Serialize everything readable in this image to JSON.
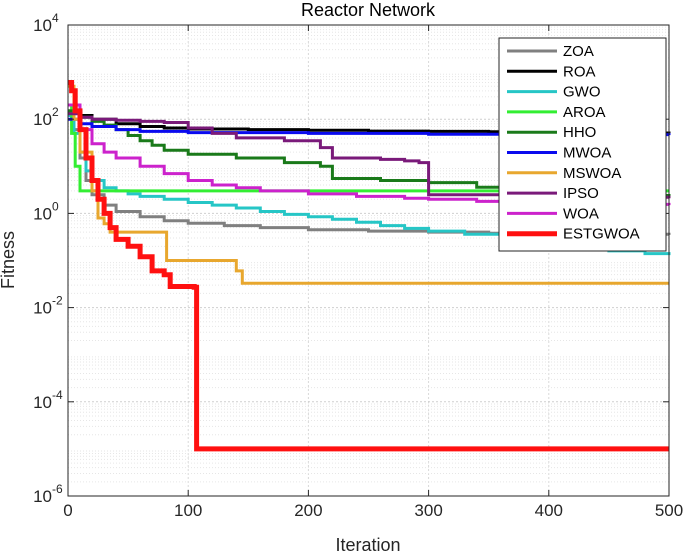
{
  "chart_data": {
    "type": "line",
    "title": "Reactor Network",
    "xlabel": "Iteration",
    "ylabel": "Fitness",
    "xlim": [
      0,
      500
    ],
    "ylim": [
      1e-06,
      10000.0
    ],
    "yscale": "log",
    "grid": true,
    "legend_position": "top-right",
    "x_ticks": [
      {
        "value": 0,
        "label": "0"
      },
      {
        "value": 100,
        "label": "100"
      },
      {
        "value": 200,
        "label": "200"
      },
      {
        "value": 300,
        "label": "300"
      },
      {
        "value": 400,
        "label": "400"
      },
      {
        "value": 500,
        "label": "500"
      }
    ],
    "y_ticks": [
      {
        "value": 1e-06,
        "base": "10",
        "exp": "-6"
      },
      {
        "value": 0.0001,
        "base": "10",
        "exp": "-4"
      },
      {
        "value": 0.01,
        "base": "10",
        "exp": "-2"
      },
      {
        "value": 1,
        "base": "10",
        "exp": "0"
      },
      {
        "value": 100,
        "base": "10",
        "exp": "2"
      },
      {
        "value": 10000,
        "base": "10",
        "exp": "4"
      }
    ],
    "series": [
      {
        "name": "ZOA",
        "color": "#808080",
        "width": 3,
        "points": [
          [
            0,
            200
          ],
          [
            5,
            60
          ],
          [
            10,
            15
          ],
          [
            15,
            5
          ],
          [
            20,
            2.5
          ],
          [
            30,
            1.5
          ],
          [
            40,
            1.1
          ],
          [
            60,
            0.85
          ],
          [
            80,
            0.7
          ],
          [
            100,
            0.62
          ],
          [
            130,
            0.55
          ],
          [
            160,
            0.5
          ],
          [
            200,
            0.45
          ],
          [
            250,
            0.42
          ],
          [
            300,
            0.4
          ],
          [
            350,
            0.38
          ],
          [
            400,
            0.37
          ],
          [
            450,
            0.36
          ],
          [
            500,
            0.35
          ]
        ]
      },
      {
        "name": "ROA",
        "color": "#000000",
        "width": 3,
        "points": [
          [
            0,
            150
          ],
          [
            10,
            120
          ],
          [
            20,
            100
          ],
          [
            40,
            80
          ],
          [
            60,
            70
          ],
          [
            80,
            65
          ],
          [
            100,
            62
          ],
          [
            150,
            60
          ],
          [
            200,
            58
          ],
          [
            250,
            56
          ],
          [
            300,
            55
          ],
          [
            350,
            54
          ],
          [
            400,
            52
          ],
          [
            450,
            51
          ],
          [
            500,
            50
          ]
        ]
      },
      {
        "name": "GWO",
        "color": "#26c6c6",
        "width": 3,
        "points": [
          [
            0,
            120
          ],
          [
            5,
            50
          ],
          [
            10,
            20
          ],
          [
            15,
            8
          ],
          [
            20,
            5
          ],
          [
            30,
            3.5
          ],
          [
            40,
            3
          ],
          [
            50,
            2.6
          ],
          [
            60,
            2.3
          ],
          [
            80,
            2
          ],
          [
            100,
            1.7
          ],
          [
            120,
            1.5
          ],
          [
            140,
            1.3
          ],
          [
            160,
            1.1
          ],
          [
            180,
            0.95
          ],
          [
            200,
            0.85
          ],
          [
            220,
            0.75
          ],
          [
            240,
            0.65
          ],
          [
            260,
            0.55
          ],
          [
            280,
            0.48
          ],
          [
            300,
            0.42
          ],
          [
            330,
            0.36
          ],
          [
            360,
            0.3
          ],
          [
            390,
            0.25
          ],
          [
            420,
            0.2
          ],
          [
            450,
            0.16
          ],
          [
            480,
            0.14
          ],
          [
            500,
            0.13
          ]
        ]
      },
      {
        "name": "AROA",
        "color": "#33ee33",
        "width": 3,
        "points": [
          [
            0,
            200
          ],
          [
            3,
            50
          ],
          [
            6,
            10
          ],
          [
            10,
            3
          ],
          [
            100,
            3
          ],
          [
            200,
            3
          ],
          [
            300,
            3
          ],
          [
            400,
            3
          ],
          [
            500,
            3
          ]
        ]
      },
      {
        "name": "HHO",
        "color": "#1a7a1a",
        "width": 3,
        "points": [
          [
            0,
            150
          ],
          [
            10,
            110
          ],
          [
            20,
            90
          ],
          [
            30,
            75
          ],
          [
            40,
            60
          ],
          [
            50,
            45
          ],
          [
            60,
            35
          ],
          [
            70,
            28
          ],
          [
            80,
            22
          ],
          [
            100,
            18
          ],
          [
            140,
            15
          ],
          [
            180,
            12
          ],
          [
            210,
            10
          ],
          [
            220,
            5.5
          ],
          [
            260,
            5
          ],
          [
            300,
            4.5
          ],
          [
            340,
            3.6
          ],
          [
            380,
            2.8
          ],
          [
            420,
            2.5
          ],
          [
            460,
            2.4
          ],
          [
            500,
            2.3
          ]
        ]
      },
      {
        "name": "MWOA",
        "color": "#0a0aee",
        "width": 3,
        "points": [
          [
            0,
            100
          ],
          [
            10,
            80
          ],
          [
            20,
            70
          ],
          [
            40,
            60
          ],
          [
            60,
            55
          ],
          [
            100,
            52
          ],
          [
            200,
            50
          ],
          [
            300,
            48
          ],
          [
            400,
            47
          ],
          [
            500,
            46
          ]
        ]
      },
      {
        "name": "MSWOA",
        "color": "#e8a72e",
        "width": 3,
        "points": [
          [
            0,
            500
          ],
          [
            5,
            100
          ],
          [
            10,
            20
          ],
          [
            20,
            3
          ],
          [
            25,
            0.8
          ],
          [
            30,
            0.6
          ],
          [
            35,
            0.4
          ],
          [
            78,
            0.4
          ],
          [
            82,
            0.1
          ],
          [
            118,
            0.1
          ],
          [
            138,
            0.1
          ],
          [
            140,
            0.06
          ],
          [
            145,
            0.033
          ],
          [
            500,
            0.033
          ]
        ]
      },
      {
        "name": "IPSO",
        "color": "#7a1a7a",
        "width": 3,
        "points": [
          [
            0,
            130
          ],
          [
            10,
            110
          ],
          [
            20,
            100
          ],
          [
            40,
            95
          ],
          [
            60,
            90
          ],
          [
            80,
            85
          ],
          [
            100,
            65
          ],
          [
            120,
            50
          ],
          [
            140,
            40
          ],
          [
            180,
            35
          ],
          [
            210,
            25
          ],
          [
            220,
            15
          ],
          [
            260,
            14
          ],
          [
            280,
            13
          ],
          [
            292,
            12
          ],
          [
            300,
            2.5
          ],
          [
            340,
            2.5
          ],
          [
            360,
            2.4
          ],
          [
            380,
            2.3
          ],
          [
            420,
            2.2
          ],
          [
            500,
            2.1
          ]
        ]
      },
      {
        "name": "WOA",
        "color": "#cc22cc",
        "width": 3,
        "points": [
          [
            0,
            200
          ],
          [
            10,
            60
          ],
          [
            20,
            30
          ],
          [
            30,
            20
          ],
          [
            40,
            15
          ],
          [
            60,
            10
          ],
          [
            80,
            7
          ],
          [
            100,
            5
          ],
          [
            120,
            4
          ],
          [
            140,
            3.5
          ],
          [
            160,
            3
          ],
          [
            200,
            2.6
          ],
          [
            240,
            2.3
          ],
          [
            280,
            2.1
          ],
          [
            300,
            2
          ],
          [
            340,
            1.8
          ],
          [
            380,
            1.7
          ],
          [
            420,
            1.6
          ],
          [
            460,
            1.55
          ],
          [
            500,
            1.5
          ]
        ]
      },
      {
        "name": "ESTGWOA",
        "color": "#ff1010",
        "width": 5,
        "points": [
          [
            0,
            600
          ],
          [
            3,
            400
          ],
          [
            6,
            150
          ],
          [
            10,
            60
          ],
          [
            15,
            15
          ],
          [
            20,
            5
          ],
          [
            25,
            2
          ],
          [
            30,
            1
          ],
          [
            35,
            0.5
          ],
          [
            40,
            0.28
          ],
          [
            50,
            0.2
          ],
          [
            60,
            0.12
          ],
          [
            70,
            0.06
          ],
          [
            80,
            0.05
          ],
          [
            85,
            0.028
          ],
          [
            105,
            0.027
          ],
          [
            106,
            0.027
          ],
          [
            107,
            1e-05
          ],
          [
            200,
            1e-05
          ],
          [
            300,
            1e-05
          ],
          [
            400,
            1e-05
          ],
          [
            500,
            1e-05
          ]
        ]
      }
    ]
  }
}
